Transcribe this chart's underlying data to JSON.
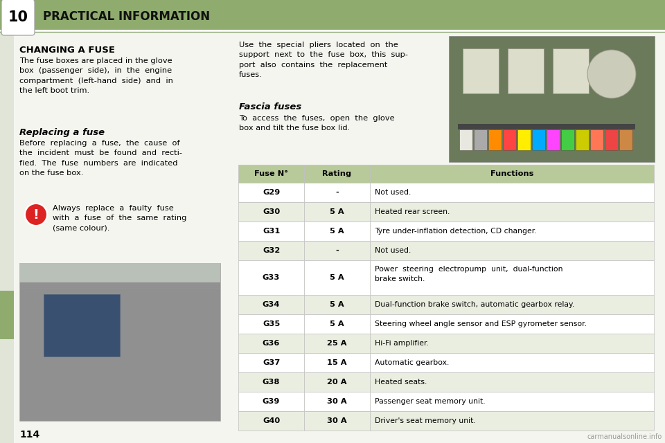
{
  "page_bg": "#f5f5f0",
  "header_bg": "#8fac6e",
  "header_text": "PRACTICAL INFORMATION",
  "header_number": "10",
  "header_text_color": "#111111",
  "section1_title": "CHANGING A FUSE",
  "section1_body": "The fuse boxes are placed in the glove\nbox  (passenger  side),  in  the  engine\ncompartment  (left-hand  side)  and  in\nthe left boot trim.",
  "section2_title": "Replacing a fuse",
  "section2_body": "Before  replacing  a  fuse,  the  cause  of\nthe  incident  must  be  found  and  recti-\nfied.  The  fuse  numbers  are  indicated\non the fuse box.",
  "warning_text": "Always  replace  a  faulty  fuse\nwith  a  fuse  of  the  same  rating\n(same colour).",
  "right_text1": "Use  the  special  pliers  located  on  the\nsupport  next  to  the  fuse  box,  this  sup-\nport  also  contains  the  replacement\nfuses.",
  "fascia_title": "Fascia fuses",
  "fascia_body": "To  access  the  fuses,  open  the  glove\nbox and tilt the fuse box lid.",
  "table_header_bg": "#b8c99a",
  "table_row_odd_bg": "#ffffff",
  "table_row_even_bg": "#eaeee0",
  "table_border_color": "#c0c0c0",
  "table_header": [
    "Fuse N°",
    "Rating",
    "Functions"
  ],
  "table_data": [
    [
      "G29",
      "-",
      "Not used."
    ],
    [
      "G30",
      "5 A",
      "Heated rear screen."
    ],
    [
      "G31",
      "5 A",
      "Tyre under-inflation detection, CD changer."
    ],
    [
      "G32",
      "-",
      "Not used."
    ],
    [
      "G33",
      "5 A",
      "Power  steering  electropump  unit,  dual-function\nbrake switch."
    ],
    [
      "G34",
      "5 A",
      "Dual-function brake switch, automatic gearbox relay."
    ],
    [
      "G35",
      "5 A",
      "Steering wheel angle sensor and ESP gyrometer sensor."
    ],
    [
      "G36",
      "25 A",
      "Hi-Fi amplifier."
    ],
    [
      "G37",
      "15 A",
      "Automatic gearbox."
    ],
    [
      "G38",
      "20 A",
      "Heated seats."
    ],
    [
      "G39",
      "30 A",
      "Passenger seat memory unit."
    ],
    [
      "G40",
      "30 A",
      "Driver's seat memory unit."
    ]
  ],
  "page_number": "114",
  "left_sidebar_color": "#8fac6e",
  "watermark": "carmanualsonline.info",
  "fuse_img_bg": "#6a7a5a",
  "fuse_connector_color": "#ddddcc",
  "fuse_circle_color": "#ccccbb",
  "fuse_colors_row": [
    "#e8e8e0",
    "#aaaaaa",
    "#ff8c00",
    "#ff4444",
    "#ffee00",
    "#00aaff",
    "#ff44ff",
    "#44cc44",
    "#cccc00",
    "#ff7755",
    "#ee4444",
    "#cc8844"
  ],
  "car_img_bg": "#909090",
  "car_inner_bg": "#3a5070"
}
